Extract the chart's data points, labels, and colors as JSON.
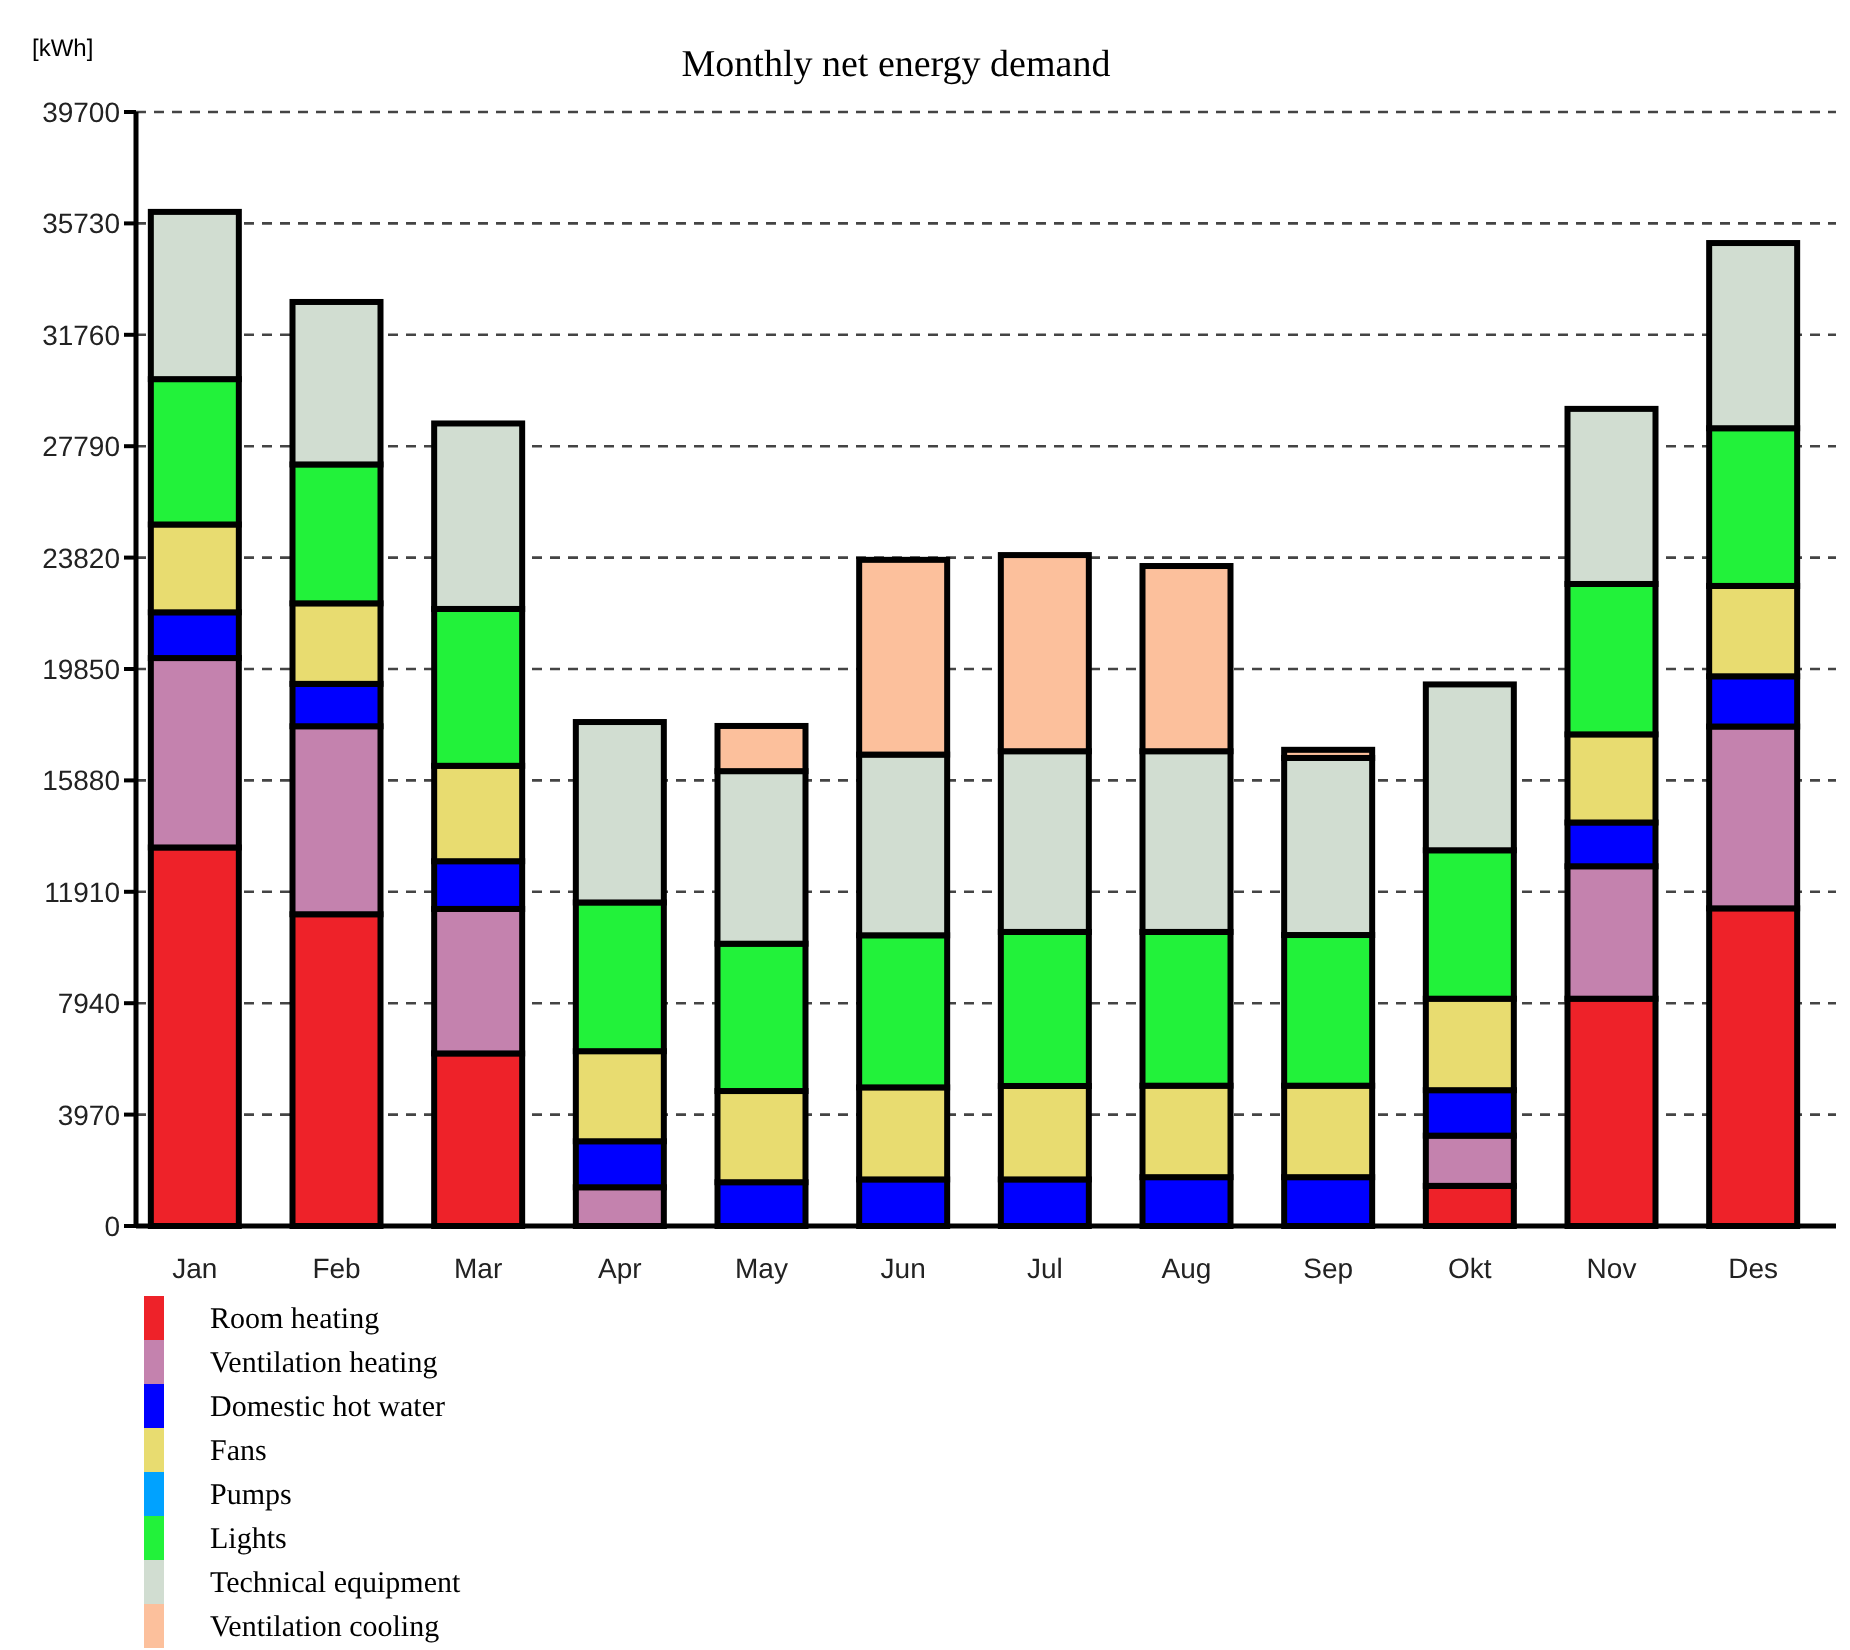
{
  "chart_data": {
    "type": "bar",
    "title": "Monthly net energy demand",
    "ylabel": "[kWh]",
    "stacked": true,
    "categories": [
      "Jan",
      "Feb",
      "Mar",
      "Apr",
      "May",
      "Jun",
      "Jul",
      "Aug",
      "Sep",
      "Okt",
      "Nov",
      "Des"
    ],
    "series": [
      {
        "name": "Room heating",
        "color": "#ee2229",
        "values": [
          13490,
          11110,
          6150,
          null,
          null,
          0,
          0,
          0,
          0,
          1430,
          8100,
          11320
        ]
      },
      {
        "name": "Ventilation heating",
        "color": "#c482ae",
        "values": [
          6750,
          6700,
          5150,
          1380,
          0,
          0,
          0,
          0,
          0,
          1790,
          4720,
          6480
        ]
      },
      {
        "name": "Domestic hot water",
        "color": "#0000ff",
        "values": [
          1630,
          1510,
          1700,
          1640,
          1560,
          1660,
          1660,
          1740,
          1740,
          1620,
          1560,
          1790
        ]
      },
      {
        "name": "Fans",
        "color": "#e8dc70",
        "values": [
          3130,
          2870,
          3400,
          3210,
          3250,
          3280,
          3330,
          3260,
          3260,
          3260,
          3140,
          3220
        ]
      },
      {
        "name": "Pumps",
        "color": "#00a2ff",
        "values": [
          0,
          0,
          0,
          0,
          0,
          0,
          0,
          0,
          0,
          0,
          0,
          0
        ]
      },
      {
        "name": "Lights",
        "color": "#22f23a",
        "values": [
          5180,
          4950,
          5590,
          5300,
          5250,
          5420,
          5490,
          5480,
          5370,
          5290,
          5360,
          5620
        ]
      },
      {
        "name": "Technical equipment",
        "color": "#d1ddd1",
        "values": [
          5960,
          5790,
          6610,
          6430,
          6150,
          6440,
          6440,
          6440,
          6310,
          5910,
          6240,
          6600
        ]
      },
      {
        "name": "Ventilation cooling",
        "color": "#fcc09c",
        "values": [
          0,
          0,
          0,
          0,
          1610,
          6940,
          6990,
          6600,
          290,
          0,
          0,
          0
        ]
      }
    ],
    "ylim": [
      0,
      39700
    ],
    "yticks": [
      0,
      3970,
      7940,
      11910,
      15880,
      19850,
      23820,
      27790,
      31760,
      35730,
      39700
    ],
    "grid": "y",
    "legend": "bottom left"
  }
}
